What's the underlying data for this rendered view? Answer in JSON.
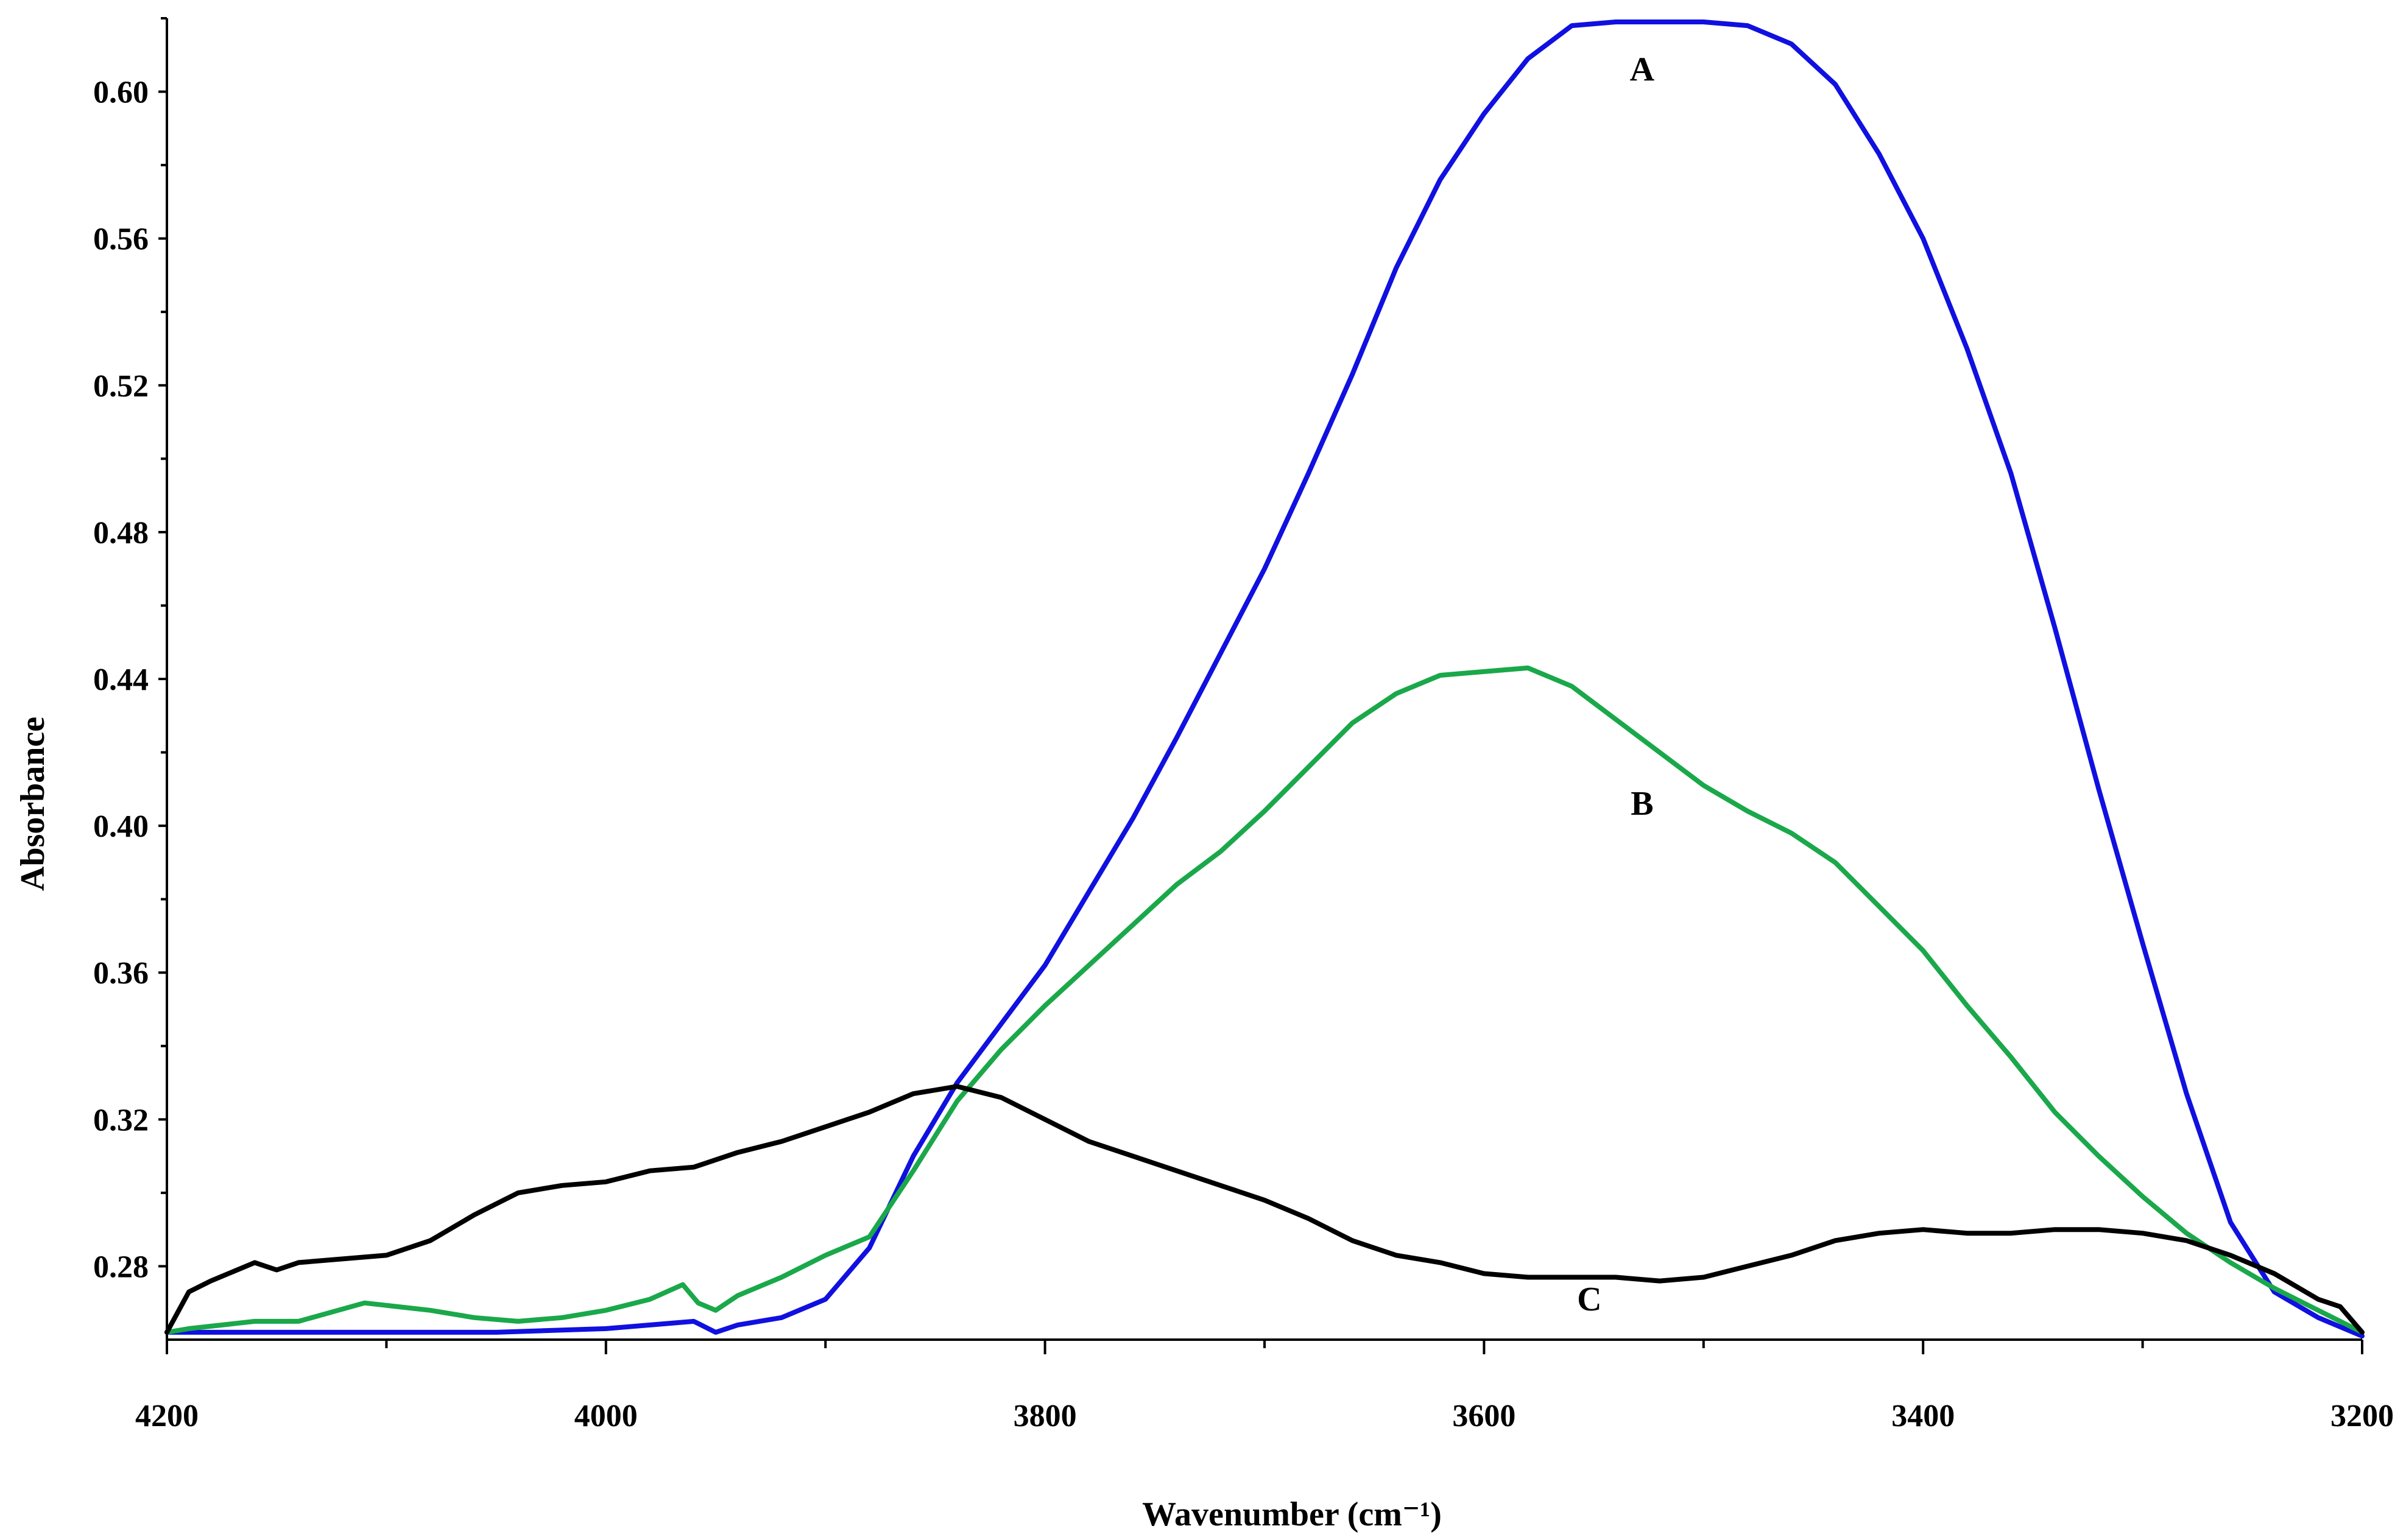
{
  "chart_data": {
    "type": "line",
    "title": "",
    "xlabel": "Wavenumber (cm⁻¹)",
    "ylabel": "Absorbance",
    "xlim": [
      4200,
      3200
    ],
    "ylim": [
      0.26,
      0.62
    ],
    "x_ticks": [
      4200,
      4000,
      3800,
      3600,
      3400,
      3200
    ],
    "x_tick_labels": [
      "4200",
      "4000",
      "3800",
      "3600",
      "3400",
      "3200"
    ],
    "y_ticks": [
      0.28,
      0.32,
      0.36,
      0.4,
      0.44,
      0.48,
      0.52,
      0.56,
      0.6
    ],
    "y_tick_labels": [
      "0.28",
      "0.32",
      "0.36",
      "0.40",
      "0.44",
      "0.48",
      "0.52",
      "0.56",
      "0.60"
    ],
    "grid": false,
    "series": [
      {
        "name": "A",
        "color": "#1010e0",
        "label_at": [
          3528,
          0.603
        ],
        "x": [
          4200,
          4150,
          4100,
          4050,
          4000,
          3980,
          3960,
          3950,
          3940,
          3920,
          3900,
          3880,
          3860,
          3840,
          3820,
          3800,
          3780,
          3760,
          3740,
          3720,
          3700,
          3680,
          3660,
          3640,
          3620,
          3600,
          3580,
          3560,
          3540,
          3520,
          3500,
          3480,
          3460,
          3440,
          3420,
          3400,
          3380,
          3360,
          3340,
          3320,
          3300,
          3280,
          3260,
          3240,
          3220,
          3200
        ],
        "y": [
          0.262,
          0.262,
          0.262,
          0.262,
          0.263,
          0.264,
          0.265,
          0.262,
          0.264,
          0.266,
          0.271,
          0.285,
          0.31,
          0.33,
          0.346,
          0.362,
          0.382,
          0.402,
          0.424,
          0.447,
          0.47,
          0.496,
          0.523,
          0.552,
          0.576,
          0.594,
          0.609,
          0.618,
          0.619,
          0.619,
          0.619,
          0.618,
          0.613,
          0.602,
          0.583,
          0.56,
          0.53,
          0.496,
          0.454,
          0.41,
          0.368,
          0.327,
          0.292,
          0.273,
          0.266,
          0.261
        ]
      },
      {
        "name": "B",
        "color": "#1aa84a",
        "label_at": [
          3528,
          0.403
        ],
        "x": [
          4200,
          4190,
          4160,
          4140,
          4110,
          4080,
          4060,
          4040,
          4020,
          4000,
          3980,
          3965,
          3958,
          3950,
          3940,
          3920,
          3900,
          3880,
          3860,
          3840,
          3820,
          3800,
          3780,
          3760,
          3740,
          3720,
          3700,
          3680,
          3660,
          3640,
          3620,
          3600,
          3580,
          3560,
          3540,
          3520,
          3500,
          3480,
          3460,
          3440,
          3420,
          3400,
          3380,
          3360,
          3340,
          3320,
          3300,
          3280,
          3260,
          3240,
          3220,
          3200
        ],
        "y": [
          0.262,
          0.263,
          0.265,
          0.265,
          0.27,
          0.268,
          0.266,
          0.265,
          0.266,
          0.268,
          0.271,
          0.275,
          0.27,
          0.268,
          0.272,
          0.277,
          0.283,
          0.288,
          0.306,
          0.325,
          0.339,
          0.351,
          0.362,
          0.373,
          0.384,
          0.393,
          0.404,
          0.416,
          0.428,
          0.436,
          0.441,
          0.442,
          0.443,
          0.438,
          0.429,
          0.42,
          0.411,
          0.404,
          0.398,
          0.39,
          0.378,
          0.366,
          0.351,
          0.337,
          0.322,
          0.31,
          0.299,
          0.289,
          0.281,
          0.274,
          0.268,
          0.262
        ]
      },
      {
        "name": "C",
        "color": "#000000",
        "label_at": [
          3552,
          0.268
        ],
        "x": [
          4200,
          4190,
          4180,
          4160,
          4150,
          4140,
          4100,
          4080,
          4060,
          4040,
          4020,
          4000,
          3980,
          3960,
          3940,
          3920,
          3900,
          3880,
          3860,
          3840,
          3820,
          3800,
          3780,
          3760,
          3740,
          3720,
          3700,
          3680,
          3660,
          3640,
          3620,
          3600,
          3580,
          3560,
          3540,
          3520,
          3500,
          3480,
          3460,
          3440,
          3420,
          3400,
          3380,
          3360,
          3340,
          3320,
          3300,
          3280,
          3260,
          3240,
          3220,
          3210,
          3200
        ],
        "y": [
          0.262,
          0.273,
          0.276,
          0.281,
          0.279,
          0.281,
          0.283,
          0.287,
          0.294,
          0.3,
          0.302,
          0.303,
          0.306,
          0.307,
          0.311,
          0.314,
          0.318,
          0.322,
          0.327,
          0.329,
          0.326,
          0.32,
          0.314,
          0.31,
          0.306,
          0.302,
          0.298,
          0.293,
          0.287,
          0.283,
          0.281,
          0.278,
          0.277,
          0.277,
          0.277,
          0.276,
          0.277,
          0.28,
          0.283,
          0.287,
          0.289,
          0.29,
          0.289,
          0.289,
          0.29,
          0.29,
          0.289,
          0.287,
          0.283,
          0.278,
          0.271,
          0.269,
          0.262
        ]
      }
    ]
  }
}
